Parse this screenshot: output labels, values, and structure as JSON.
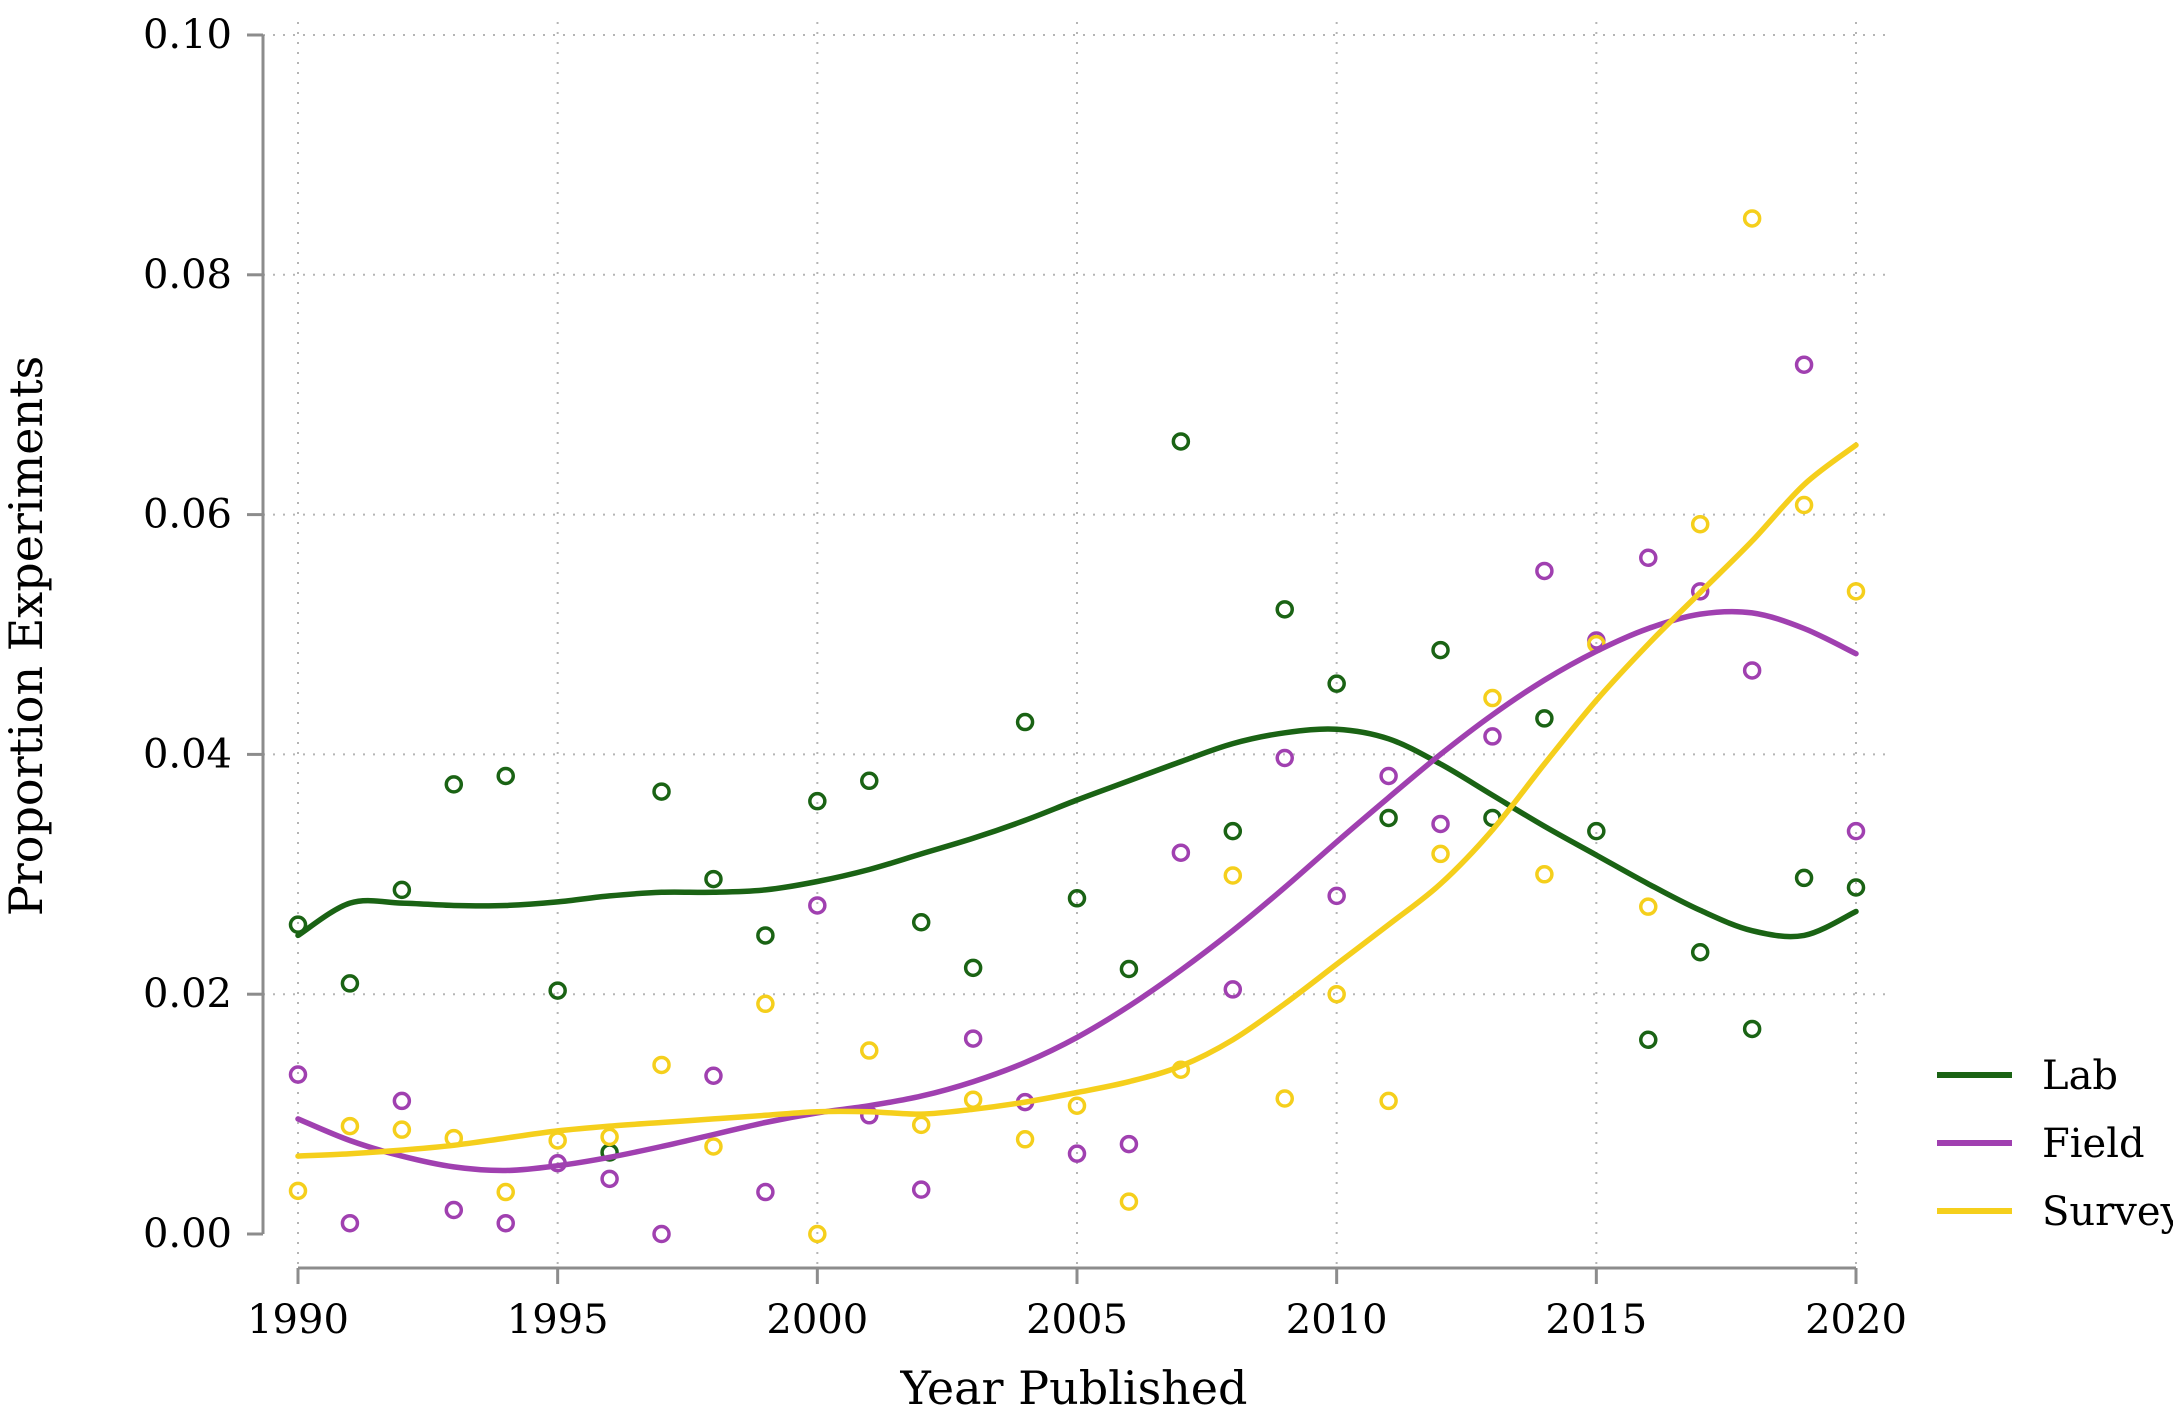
{
  "chart_data": {
    "type": "scatter",
    "title": "",
    "xlabel": "Year Published",
    "ylabel": "Proportion Experiments",
    "xlim": [
      1990,
      2020
    ],
    "ylim": [
      0,
      0.1
    ],
    "xticks": [
      1990,
      1995,
      2000,
      2005,
      2010,
      2015,
      2020
    ],
    "xtick_labels": [
      "1990",
      "1995",
      "2000",
      "2005",
      "2010",
      "2015",
      "2020"
    ],
    "yticks": [
      0,
      0.02,
      0.04,
      0.06,
      0.08,
      0.1
    ],
    "ytick_labels": [
      "0.00",
      "0.02",
      "0.04",
      "0.06",
      "0.08",
      "0.10"
    ],
    "grid": true,
    "legend_position": "right",
    "series": [
      {
        "name": "Lab",
        "color": "#1a6314",
        "points": [
          [
            1990,
            0.0258
          ],
          [
            1991,
            0.0209
          ],
          [
            1992,
            0.0287
          ],
          [
            1993,
            0.0375
          ],
          [
            1994,
            0.0382
          ],
          [
            1995,
            0.0203
          ],
          [
            1996,
            0.0068
          ],
          [
            1997,
            0.0369
          ],
          [
            1998,
            0.0296
          ],
          [
            1999,
            0.0249
          ],
          [
            2000,
            0.0361
          ],
          [
            2001,
            0.0378
          ],
          [
            2002,
            0.026
          ],
          [
            2003,
            0.0222
          ],
          [
            2004,
            0.0427
          ],
          [
            2005,
            0.028
          ],
          [
            2006,
            0.0221
          ],
          [
            2007,
            0.0661
          ],
          [
            2008,
            0.0336
          ],
          [
            2009,
            0.0521
          ],
          [
            2010,
            0.0459
          ],
          [
            2011,
            0.0347
          ],
          [
            2012,
            0.0487
          ],
          [
            2013,
            0.0347
          ],
          [
            2014,
            0.043
          ],
          [
            2015,
            0.0336
          ],
          [
            2016,
            0.0162
          ],
          [
            2017,
            0.0235
          ],
          [
            2018,
            0.0171
          ],
          [
            2019,
            0.0297
          ],
          [
            2020,
            0.0289
          ]
        ],
        "smooth": [
          [
            1990,
            0.0249
          ],
          [
            1991,
            0.0276
          ],
          [
            1992,
            0.0276
          ],
          [
            1993,
            0.0274
          ],
          [
            1994,
            0.0274
          ],
          [
            1995,
            0.0277
          ],
          [
            1996,
            0.0282
          ],
          [
            1997,
            0.0285
          ],
          [
            1998,
            0.0285
          ],
          [
            1999,
            0.0287
          ],
          [
            2000,
            0.0294
          ],
          [
            2001,
            0.0304
          ],
          [
            2002,
            0.0317
          ],
          [
            2003,
            0.033
          ],
          [
            2004,
            0.0345
          ],
          [
            2005,
            0.0362
          ],
          [
            2006,
            0.0378
          ],
          [
            2007,
            0.0394
          ],
          [
            2008,
            0.0409
          ],
          [
            2009,
            0.0418
          ],
          [
            2010,
            0.0421
          ],
          [
            2011,
            0.0413
          ],
          [
            2012,
            0.0392
          ],
          [
            2013,
            0.0366
          ],
          [
            2014,
            0.034
          ],
          [
            2015,
            0.0316
          ],
          [
            2016,
            0.0292
          ],
          [
            2017,
            0.027
          ],
          [
            2018,
            0.0253
          ],
          [
            2019,
            0.0249
          ],
          [
            2020,
            0.0269
          ]
        ]
      },
      {
        "name": "Field",
        "color": "#a040b0",
        "points": [
          [
            1990,
            0.0133
          ],
          [
            1991,
            0.0009
          ],
          [
            1992,
            0.0111
          ],
          [
            1993,
            0.002
          ],
          [
            1994,
            0.0009
          ],
          [
            1995,
            0.0059
          ],
          [
            1996,
            0.0046
          ],
          [
            1997,
            0.0
          ],
          [
            1998,
            0.0132
          ],
          [
            1999,
            0.0035
          ],
          [
            2000,
            0.0274
          ],
          [
            2001,
            0.0099
          ],
          [
            2002,
            0.0037
          ],
          [
            2003,
            0.0163
          ],
          [
            2004,
            0.011
          ],
          [
            2005,
            0.0067
          ],
          [
            2006,
            0.0075
          ],
          [
            2007,
            0.0318
          ],
          [
            2008,
            0.0204
          ],
          [
            2009,
            0.0397
          ],
          [
            2010,
            0.0282
          ],
          [
            2011,
            0.0382
          ],
          [
            2012,
            0.0342
          ],
          [
            2013,
            0.0415
          ],
          [
            2014,
            0.0553
          ],
          [
            2015,
            0.0495
          ],
          [
            2016,
            0.0564
          ],
          [
            2017,
            0.0536
          ],
          [
            2018,
            0.047
          ],
          [
            2019,
            0.0725
          ],
          [
            2020,
            0.0336
          ]
        ],
        "smooth": [
          [
            1990,
            0.0096
          ],
          [
            1991,
            0.0078
          ],
          [
            1992,
            0.0065
          ],
          [
            1993,
            0.0056
          ],
          [
            1994,
            0.0053
          ],
          [
            1995,
            0.0057
          ],
          [
            1996,
            0.0064
          ],
          [
            1997,
            0.0073
          ],
          [
            1998,
            0.0083
          ],
          [
            1999,
            0.0093
          ],
          [
            2000,
            0.0101
          ],
          [
            2001,
            0.0107
          ],
          [
            2002,
            0.0115
          ],
          [
            2003,
            0.0127
          ],
          [
            2004,
            0.0143
          ],
          [
            2005,
            0.0164
          ],
          [
            2006,
            0.019
          ],
          [
            2007,
            0.022
          ],
          [
            2008,
            0.0253
          ],
          [
            2009,
            0.0289
          ],
          [
            2010,
            0.0327
          ],
          [
            2011,
            0.0364
          ],
          [
            2012,
            0.04
          ],
          [
            2013,
            0.0433
          ],
          [
            2014,
            0.0462
          ],
          [
            2015,
            0.0486
          ],
          [
            2016,
            0.0505
          ],
          [
            2017,
            0.0517
          ],
          [
            2018,
            0.0518
          ],
          [
            2019,
            0.0505
          ],
          [
            2020,
            0.0484
          ]
        ]
      },
      {
        "name": "Survey",
        "color": "#f5cf1c",
        "points": [
          [
            1990,
            0.0036
          ],
          [
            1991,
            0.009
          ],
          [
            1992,
            0.0087
          ],
          [
            1993,
            0.008
          ],
          [
            1994,
            0.0035
          ],
          [
            1995,
            0.0078
          ],
          [
            1996,
            0.0081
          ],
          [
            1997,
            0.0141
          ],
          [
            1998,
            0.0073
          ],
          [
            1999,
            0.0192
          ],
          [
            2000,
            0.0
          ],
          [
            2001,
            0.0153
          ],
          [
            2002,
            0.0091
          ],
          [
            2003,
            0.0112
          ],
          [
            2004,
            0.0079
          ],
          [
            2005,
            0.0107
          ],
          [
            2006,
            0.0027
          ],
          [
            2007,
            0.0137
          ],
          [
            2008,
            0.0299
          ],
          [
            2009,
            0.0113
          ],
          [
            2010,
            0.02
          ],
          [
            2011,
            0.0111
          ],
          [
            2012,
            0.0317
          ],
          [
            2013,
            0.0447
          ],
          [
            2014,
            0.03
          ],
          [
            2015,
            0.0492
          ],
          [
            2016,
            0.0273
          ],
          [
            2017,
            0.0592
          ],
          [
            2018,
            0.0847
          ],
          [
            2019,
            0.0608
          ],
          [
            2020,
            0.0536
          ]
        ],
        "smooth": [
          [
            1990,
            0.0065
          ],
          [
            1991,
            0.0067
          ],
          [
            1992,
            0.007
          ],
          [
            1993,
            0.0074
          ],
          [
            1994,
            0.008
          ],
          [
            1995,
            0.0086
          ],
          [
            1996,
            0.009
          ],
          [
            1997,
            0.0093
          ],
          [
            1998,
            0.0096
          ],
          [
            1999,
            0.0099
          ],
          [
            2000,
            0.0102
          ],
          [
            2001,
            0.0102
          ],
          [
            2002,
            0.01
          ],
          [
            2003,
            0.0104
          ],
          [
            2004,
            0.011
          ],
          [
            2005,
            0.0118
          ],
          [
            2006,
            0.0127
          ],
          [
            2007,
            0.014
          ],
          [
            2008,
            0.0162
          ],
          [
            2009,
            0.0192
          ],
          [
            2010,
            0.0225
          ],
          [
            2011,
            0.0258
          ],
          [
            2012,
            0.0292
          ],
          [
            2013,
            0.0337
          ],
          [
            2014,
            0.0392
          ],
          [
            2015,
            0.0445
          ],
          [
            2016,
            0.0492
          ],
          [
            2017,
            0.0535
          ],
          [
            2018,
            0.0578
          ],
          [
            2019,
            0.0625
          ],
          [
            2020,
            0.0658
          ]
        ]
      }
    ]
  }
}
